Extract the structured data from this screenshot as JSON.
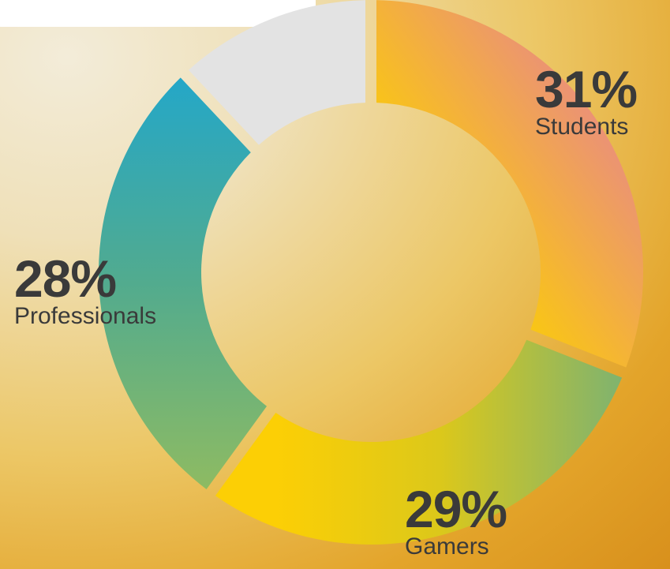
{
  "chart_data": {
    "type": "pie",
    "style": "donut",
    "title": "",
    "categories": [
      "Students",
      "Gamers",
      "Professionals",
      ""
    ],
    "values": [
      31,
      29,
      28,
      12
    ],
    "labels": [
      {
        "value": "31%",
        "name": "Students"
      },
      {
        "value": "29%",
        "name": "Gamers"
      },
      {
        "value": "28%",
        "name": "Professionals"
      }
    ],
    "colors": {
      "students": [
        "#fcd100",
        "#e8868c"
      ],
      "gamers": [
        "#fccf05",
        "#7fb36f"
      ],
      "professionals": [
        "#24a7c8",
        "#86b868"
      ],
      "remainder": "#e3e3e3",
      "text": "#3a3a3a"
    }
  }
}
